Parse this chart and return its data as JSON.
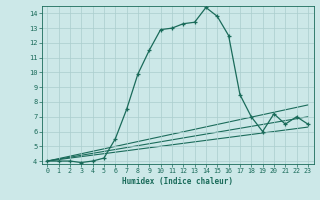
{
  "xlabel": "Humidex (Indice chaleur)",
  "xlim": [
    -0.5,
    23.5
  ],
  "ylim": [
    3.8,
    14.5
  ],
  "xticks": [
    0,
    1,
    2,
    3,
    4,
    5,
    6,
    7,
    8,
    9,
    10,
    11,
    12,
    13,
    14,
    15,
    16,
    17,
    18,
    19,
    20,
    21,
    22,
    23
  ],
  "yticks": [
    4,
    5,
    6,
    7,
    8,
    9,
    10,
    11,
    12,
    13,
    14
  ],
  "bg_color": "#cce8e8",
  "line_color": "#1a6b5a",
  "grid_color": "#aacece",
  "line1_x": [
    0,
    1,
    2,
    3,
    4,
    5,
    6,
    7,
    8,
    9,
    10,
    11,
    12,
    13,
    14,
    15,
    16,
    17,
    18,
    19,
    20,
    21,
    22,
    23
  ],
  "line1_y": [
    4.0,
    4.0,
    4.0,
    3.9,
    4.0,
    4.2,
    5.5,
    7.5,
    9.9,
    11.5,
    12.9,
    13.0,
    13.3,
    13.4,
    14.4,
    13.8,
    12.5,
    8.5,
    7.0,
    6.0,
    7.2,
    6.5,
    7.0,
    6.5
  ],
  "line2_x": [
    0,
    23
  ],
  "line2_y": [
    4.0,
    7.8
  ],
  "line3_x": [
    0,
    23
  ],
  "line3_y": [
    4.0,
    7.0
  ],
  "line4_x": [
    0,
    23
  ],
  "line4_y": [
    4.0,
    6.3
  ]
}
